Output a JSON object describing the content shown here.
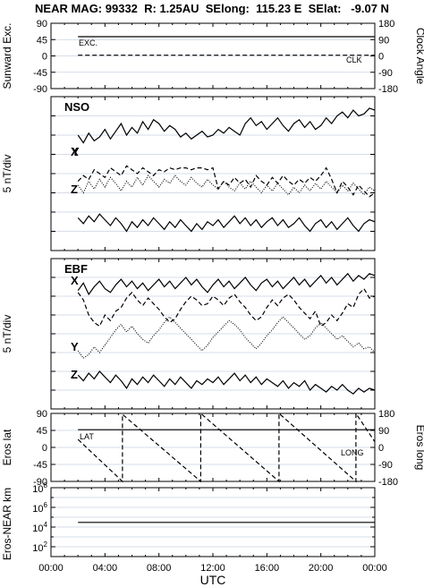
{
  "title": "NEAR MAG: 99332  R: 1.25AU  SElong:  115.23 E  SElat:   -9.07 N",
  "xaxis": {
    "label": "UTC",
    "ticks": [
      "00:00",
      "04:00",
      "08:00",
      "12:00",
      "16:00",
      "20:00",
      "00:00"
    ],
    "range_hours": [
      0,
      24
    ]
  },
  "chart_data": [
    {
      "type": "line",
      "ylabel_left": "Sunward Exc.",
      "ylabel_right": "Clock Angle",
      "yticks_left": [
        "90",
        "45",
        "0",
        "-45",
        "-90"
      ],
      "yticks_right": [
        "180",
        "90",
        "0",
        "-90",
        "-180"
      ],
      "ylim_left": [
        -90,
        90
      ],
      "ylim_right": [
        -180,
        180
      ],
      "grid": true,
      "series": [
        {
          "name": "EXC.",
          "style": "solid",
          "axis": "left",
          "x": [
            2,
            24
          ],
          "y": [
            53,
            53
          ]
        },
        {
          "name": "CLK",
          "style": "dashed",
          "axis": "left",
          "x": [
            2,
            24
          ],
          "y": [
            2,
            2
          ]
        }
      ]
    },
    {
      "type": "line",
      "panel_label": "NSO",
      "ylabel": "5 nT/div",
      "grid": true,
      "series": [
        {
          "name": "X",
          "style": "solid",
          "x": [
            2,
            2.4,
            2.8,
            3.2,
            3.6,
            4.0,
            4.4,
            4.8,
            5.2,
            5.6,
            6.0,
            6.4,
            6.8,
            7.2,
            7.6,
            8.0,
            8.4,
            8.8,
            9.2,
            9.6,
            10.0,
            10.4,
            10.8,
            11.2,
            11.6,
            12.0,
            12.4,
            12.8,
            13.2,
            13.6,
            14.0,
            14.4,
            14.8,
            15.2,
            15.6,
            16.0,
            16.4,
            16.8,
            17.2,
            17.6,
            18.0,
            18.4,
            18.8,
            19.2,
            19.6,
            20.0,
            20.4,
            20.8,
            21.2,
            21.6,
            22.0,
            22.4,
            22.8,
            23.2,
            23.6,
            24.0
          ],
          "y": [
            6.0,
            5.6,
            6.1,
            5.7,
            5.9,
            6.3,
            5.8,
            6.2,
            6.6,
            6.0,
            6.4,
            6.1,
            6.7,
            6.3,
            6.8,
            6.6,
            6.2,
            6.5,
            6.3,
            5.9,
            6.1,
            5.8,
            6.0,
            6.2,
            5.9,
            6.0,
            6.3,
            6.1,
            6.4,
            6.2,
            6.0,
            6.6,
            6.9,
            6.5,
            6.7,
            6.3,
            6.6,
            6.9,
            6.5,
            6.2,
            6.6,
            6.8,
            6.4,
            6.7,
            6.3,
            6.5,
            6.9,
            6.6,
            7.0,
            7.2,
            6.9,
            7.3,
            7.0,
            7.1,
            7.4,
            7.3
          ]
        },
        {
          "name": "Y",
          "style": "dashed",
          "x": [
            2,
            2.4,
            2.8,
            3.2,
            3.6,
            4.0,
            4.4,
            4.8,
            5.2,
            5.6,
            6.0,
            6.4,
            6.8,
            7.2,
            7.6,
            8.0,
            8.4,
            8.8,
            9.2,
            9.6,
            10.0,
            10.4,
            10.8,
            11.2,
            11.6,
            12.0,
            12.4,
            12.8,
            13.2,
            13.6,
            14.0,
            14.4,
            14.8,
            15.2,
            15.6,
            16.0,
            16.4,
            16.8,
            17.2,
            17.6,
            18.0,
            18.4,
            18.8,
            19.2,
            19.6,
            20.0,
            20.4,
            20.8,
            21.2,
            21.6,
            22.0,
            22.4,
            22.8,
            23.2,
            23.6,
            24.0
          ],
          "y": [
            3.6,
            3.9,
            3.7,
            4.2,
            4.0,
            3.8,
            4.3,
            4.1,
            3.9,
            4.4,
            4.2,
            4.0,
            4.3,
            4.1,
            3.9,
            4.2,
            4.1,
            4.3,
            4.2,
            4.3,
            4.3,
            4.2,
            4.3,
            4.3,
            4.2,
            4.3,
            3.2,
            3.6,
            3.4,
            3.8,
            3.5,
            3.7,
            3.3,
            3.9,
            3.6,
            3.4,
            3.8,
            3.5,
            3.9,
            3.6,
            3.4,
            3.7,
            3.5,
            3.8,
            3.6,
            3.9,
            4.3,
            3.7,
            3.0,
            3.6,
            3.3,
            2.9,
            3.4,
            3.1,
            2.8,
            3.0
          ]
        },
        {
          "name": "Y",
          "style": "dotted",
          "x": [
            2,
            2.4,
            2.8,
            3.2,
            3.6,
            4.0,
            4.4,
            4.8,
            5.2,
            5.6,
            6.0,
            6.4,
            6.8,
            7.2,
            7.6,
            8.0,
            8.4,
            8.8,
            9.2,
            9.6,
            10.0,
            10.4,
            10.8,
            11.2,
            11.6,
            12.0,
            12.4,
            12.8,
            13.2,
            13.6,
            14.0,
            14.4,
            14.8,
            15.2,
            15.6,
            16.0,
            16.4,
            16.8,
            17.2,
            17.6,
            18.0,
            18.4,
            18.8,
            19.2,
            19.6,
            20.0,
            20.4,
            20.8,
            21.2,
            21.6,
            22.0,
            22.4,
            22.8,
            23.2,
            23.6,
            24.0
          ],
          "y": [
            3.4,
            3.0,
            3.6,
            3.2,
            3.7,
            3.3,
            3.8,
            3.5,
            3.1,
            3.6,
            3.3,
            3.8,
            3.4,
            3.9,
            3.6,
            3.3,
            3.7,
            3.5,
            3.9,
            3.6,
            3.4,
            3.8,
            3.5,
            3.3,
            3.7,
            3.4,
            3.2,
            3.6,
            3.3,
            3.1,
            3.5,
            3.2,
            3.6,
            3.3,
            3.0,
            3.4,
            3.1,
            3.5,
            3.2,
            2.9,
            3.3,
            3.0,
            3.4,
            3.1,
            3.5,
            3.2,
            3.6,
            3.3,
            3.0,
            3.4,
            3.1,
            3.5,
            3.2,
            2.9,
            3.3,
            3.1
          ]
        },
        {
          "name": "Z",
          "style": "solid",
          "x": [
            2,
            2.4,
            2.8,
            3.2,
            3.6,
            4.0,
            4.4,
            4.8,
            5.2,
            5.6,
            6.0,
            6.4,
            6.8,
            7.2,
            7.6,
            8.0,
            8.4,
            8.8,
            9.2,
            9.6,
            10.0,
            10.4,
            10.8,
            11.2,
            11.6,
            12.0,
            12.4,
            12.8,
            13.2,
            13.6,
            14.0,
            14.4,
            14.8,
            15.2,
            15.6,
            16.0,
            16.4,
            16.8,
            17.2,
            17.6,
            18.0,
            18.4,
            18.8,
            19.2,
            19.6,
            20.0,
            20.4,
            20.8,
            21.2,
            21.6,
            22.0,
            22.4,
            22.8,
            23.2,
            23.6,
            24.0
          ],
          "y": [
            1.7,
            1.4,
            1.8,
            1.5,
            1.9,
            1.6,
            1.3,
            1.7,
            1.4,
            1.0,
            1.5,
            1.2,
            1.6,
            1.3,
            1.7,
            1.4,
            1.1,
            1.5,
            1.2,
            1.6,
            1.3,
            1.0,
            1.4,
            1.1,
            1.5,
            1.3,
            1.6,
            1.2,
            1.5,
            1.8,
            1.4,
            1.7,
            1.3,
            1.6,
            1.2,
            1.5,
            1.7,
            1.3,
            1.6,
            1.2,
            1.4,
            1.7,
            1.3,
            1.0,
            1.4,
            1.6,
            1.2,
            1.5,
            1.1,
            1.4,
            1.7,
            1.3,
            1.0,
            1.4,
            1.6,
            1.5
          ]
        }
      ]
    },
    {
      "type": "line",
      "panel_label": "EBF",
      "ylabel": "5 nT/div",
      "grid": true,
      "series": [
        {
          "name": "X",
          "style": "solid",
          "x": [
            2,
            2.4,
            2.8,
            3.2,
            3.6,
            4.0,
            4.4,
            4.8,
            5.2,
            5.6,
            6.0,
            6.4,
            6.8,
            7.2,
            7.6,
            8.0,
            8.4,
            8.8,
            9.2,
            9.6,
            10.0,
            10.4,
            10.8,
            11.2,
            11.6,
            12.0,
            12.4,
            12.8,
            13.2,
            13.6,
            14.0,
            14.4,
            14.8,
            15.2,
            15.6,
            16.0,
            16.4,
            16.8,
            17.2,
            17.6,
            18.0,
            18.4,
            18.8,
            19.2,
            19.6,
            20.0,
            20.4,
            20.8,
            21.2,
            21.6,
            22.0,
            22.4,
            22.8,
            23.2,
            23.6,
            24.0
          ],
          "y": [
            6.3,
            6.7,
            6.1,
            6.5,
            6.8,
            6.4,
            6.2,
            6.6,
            6.9,
            6.5,
            6.8,
            6.4,
            6.7,
            6.3,
            6.6,
            6.9,
            6.5,
            6.8,
            6.4,
            6.7,
            7.0,
            6.6,
            6.9,
            6.5,
            6.2,
            6.6,
            6.9,
            6.5,
            6.8,
            6.4,
            6.7,
            7.0,
            6.6,
            6.3,
            6.7,
            6.9,
            6.5,
            6.8,
            6.4,
            6.7,
            7.0,
            6.6,
            6.9,
            6.5,
            6.8,
            7.1,
            6.7,
            7.0,
            6.6,
            6.9,
            7.2,
            6.8,
            7.1,
            6.9,
            7.2,
            7.1
          ]
        },
        {
          "name": "Y",
          "style": "dashed",
          "x": [
            2,
            2.4,
            2.8,
            3.2,
            3.6,
            4.0,
            4.4,
            4.8,
            5.2,
            5.6,
            6.0,
            6.4,
            6.8,
            7.2,
            7.6,
            8.0,
            8.4,
            8.8,
            9.2,
            9.6,
            10.0,
            10.4,
            10.8,
            11.2,
            11.6,
            12.0,
            12.4,
            12.8,
            13.2,
            13.6,
            14.0,
            14.4,
            14.8,
            15.2,
            15.6,
            16.0,
            16.4,
            16.8,
            17.2,
            17.6,
            18.0,
            18.4,
            18.8,
            19.2,
            19.6,
            20.0,
            20.4,
            20.8,
            21.2,
            21.6,
            22.0,
            22.4,
            22.8,
            23.2,
            23.6,
            24.0
          ],
          "y": [
            6.2,
            5.8,
            5.0,
            4.6,
            4.4,
            5.0,
            4.7,
            5.2,
            5.4,
            5.9,
            6.2,
            5.8,
            5.5,
            5.9,
            5.6,
            5.3,
            4.9,
            4.6,
            4.8,
            5.3,
            5.7,
            6.0,
            5.8,
            5.5,
            5.6,
            6.0,
            5.8,
            5.5,
            5.9,
            6.1,
            5.7,
            5.4,
            5.0,
            4.7,
            4.9,
            5.4,
            5.8,
            5.5,
            5.9,
            6.1,
            5.8,
            5.4,
            5.1,
            4.8,
            5.2,
            4.4,
            4.6,
            5.0,
            4.7,
            5.1,
            5.6,
            5.4,
            6.1,
            6.4,
            5.9,
            6.0
          ]
        },
        {
          "name": "Y",
          "style": "dotted",
          "x": [
            2,
            2.4,
            2.8,
            3.2,
            3.6,
            4.0,
            4.4,
            4.8,
            5.2,
            5.6,
            6.0,
            6.4,
            6.8,
            7.2,
            7.6,
            8.0,
            8.4,
            8.8,
            9.2,
            9.6,
            10.0,
            10.4,
            10.8,
            11.2,
            11.6,
            12.0,
            12.4,
            12.8,
            13.2,
            13.6,
            14.0,
            14.4,
            14.8,
            15.2,
            15.6,
            16.0,
            16.4,
            16.8,
            17.2,
            17.6,
            18.0,
            18.4,
            18.8,
            19.2,
            19.6,
            20.0,
            20.4,
            20.8,
            21.2,
            21.6,
            22.0,
            22.4,
            22.8,
            23.2,
            23.6,
            24.0
          ],
          "y": [
            3.1,
            2.7,
            2.9,
            3.3,
            3.0,
            3.4,
            3.8,
            4.2,
            4.5,
            4.1,
            4.4,
            4.0,
            3.7,
            3.5,
            3.9,
            4.2,
            4.6,
            4.9,
            4.6,
            4.3,
            4.0,
            3.7,
            3.4,
            3.1,
            3.4,
            3.8,
            4.1,
            4.4,
            4.7,
            4.5,
            4.2,
            3.8,
            3.5,
            3.2,
            3.5,
            3.9,
            4.2,
            4.6,
            4.9,
            4.6,
            4.3,
            4.0,
            3.7,
            3.9,
            4.3,
            4.6,
            4.3,
            4.0,
            3.7,
            3.9,
            3.6,
            3.3,
            3.5,
            3.2,
            3.3,
            3.0
          ]
        },
        {
          "name": "Z",
          "style": "solid",
          "x": [
            2,
            2.4,
            2.8,
            3.2,
            3.6,
            4.0,
            4.4,
            4.8,
            5.2,
            5.6,
            6.0,
            6.4,
            6.8,
            7.2,
            7.6,
            8.0,
            8.4,
            8.8,
            9.2,
            9.6,
            10.0,
            10.4,
            10.8,
            11.2,
            11.6,
            12.0,
            12.4,
            12.8,
            13.2,
            13.6,
            14.0,
            14.4,
            14.8,
            15.2,
            15.6,
            16.0,
            16.4,
            16.8,
            17.2,
            17.6,
            18.0,
            18.4,
            18.8,
            19.2,
            19.6,
            20.0,
            20.4,
            20.8,
            21.2,
            21.6,
            22.0,
            22.4,
            22.8,
            23.2,
            23.6,
            24.0
          ],
          "y": [
            1.8,
            1.5,
            1.9,
            1.6,
            2.0,
            1.7,
            1.4,
            1.8,
            1.5,
            1.1,
            1.6,
            1.3,
            1.7,
            1.4,
            1.8,
            1.5,
            1.2,
            1.6,
            1.3,
            1.7,
            1.4,
            1.1,
            1.5,
            1.3,
            1.6,
            1.4,
            1.7,
            1.3,
            1.6,
            1.9,
            1.5,
            1.8,
            1.4,
            1.7,
            1.3,
            1.6,
            1.4,
            1.2,
            1.5,
            1.1,
            1.4,
            1.2,
            1.5,
            1.0,
            1.3,
            1.1,
            0.9,
            1.2,
            1.0,
            1.3,
            1.0,
            0.8,
            1.1,
            0.9,
            1.1,
            1.0
          ]
        }
      ]
    },
    {
      "type": "line",
      "ylabel_left": "Eros lat",
      "ylabel_right": "Eros long",
      "yticks_left": [
        "90",
        "45",
        "0",
        "-45",
        "-90"
      ],
      "yticks_right": [
        "180",
        "90",
        "0",
        "-90",
        "-180"
      ],
      "ylim_left": [
        -90,
        90
      ],
      "ylim_right": [
        -180,
        180
      ],
      "grid": true,
      "series": [
        {
          "name": "LAT",
          "style": "solid",
          "axis": "left",
          "x": [
            2,
            24
          ],
          "y": [
            47,
            47
          ]
        },
        {
          "name": "LONG",
          "style": "dashed",
          "axis": "right",
          "x": [
            2,
            5.3,
            5.3,
            11.1,
            11.1,
            16.9,
            16.9,
            22.6,
            22.6,
            24
          ],
          "y": [
            42,
            -180,
            175,
            -180,
            180,
            -180,
            180,
            -180,
            180,
            30
          ]
        }
      ]
    },
    {
      "type": "line",
      "ylabel": "Eros-NEAR km",
      "yscale": "log",
      "yticks": [
        "10^8",
        "10^6",
        "10^4",
        "10^2"
      ],
      "ylim": [
        10,
        100000000
      ],
      "grid": true,
      "series": [
        {
          "name": "",
          "style": "solid",
          "x": [
            2,
            24
          ],
          "y": [
            30000,
            30000
          ]
        }
      ]
    }
  ],
  "panel_annotations": {
    "top_left": "EXC.",
    "top_right": "CLK",
    "nso_labels": [
      "X",
      "Y",
      "Z"
    ],
    "ebf_labels": [
      "X",
      "Y",
      "Z"
    ],
    "lat_label": "LAT",
    "long_label": "LONG"
  }
}
